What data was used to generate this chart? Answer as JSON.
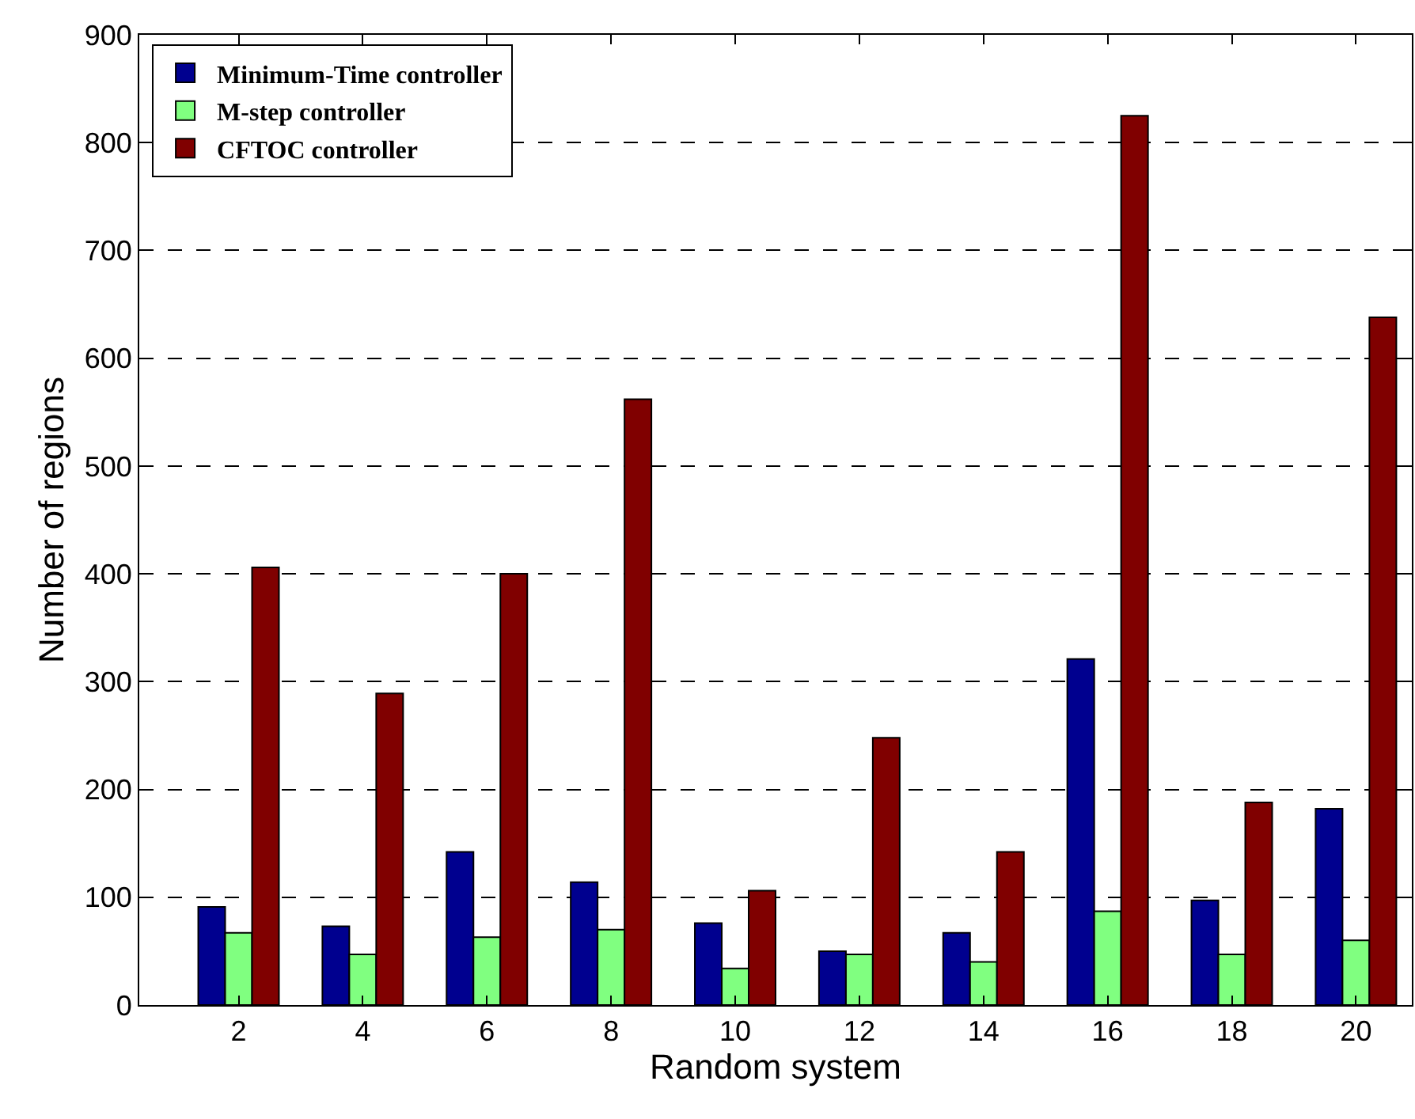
{
  "chart_data": {
    "type": "bar",
    "xlabel": "Random system",
    "ylabel": "Number of regions",
    "x": [
      2,
      4,
      6,
      8,
      10,
      12,
      14,
      16,
      18,
      20
    ],
    "series": [
      {
        "name": "Minimum-Time controller",
        "color": "#00008f",
        "values": [
          91,
          73,
          142,
          114,
          76,
          50,
          67,
          321,
          97,
          182
        ]
      },
      {
        "name": "M-step controller",
        "color": "#80ff80",
        "values": [
          67,
          47,
          63,
          70,
          34,
          47,
          40,
          87,
          47,
          60
        ]
      },
      {
        "name": "CFTOC controller",
        "color": "#800000",
        "values": [
          406,
          289,
          400,
          562,
          106,
          248,
          142,
          825,
          188,
          638
        ]
      }
    ],
    "xlim": [
      0.4,
      20.9
    ],
    "ylim": [
      0,
      900
    ],
    "xticks": [
      2,
      4,
      6,
      8,
      10,
      12,
      14,
      16,
      18,
      20
    ],
    "yticks": [
      0,
      100,
      200,
      300,
      400,
      500,
      600,
      700,
      800,
      900
    ],
    "grid": "y",
    "legend": "top left"
  }
}
